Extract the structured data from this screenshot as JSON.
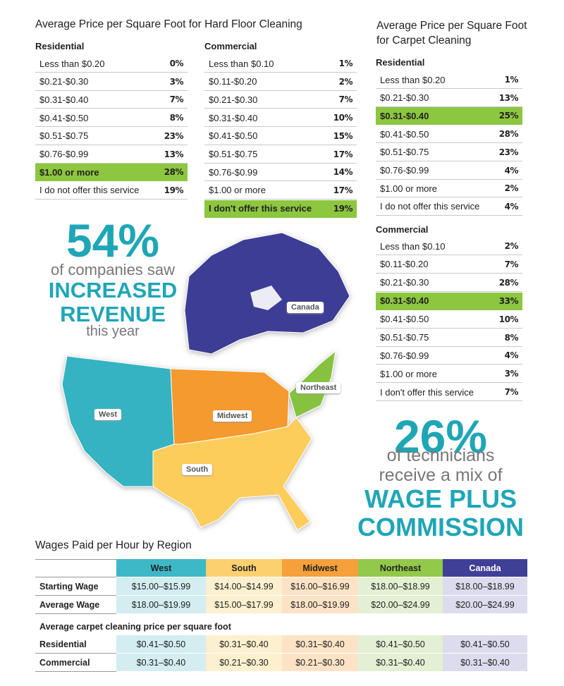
{
  "hard_floor": {
    "title": "Average Price per Square Foot for Hard Floor Cleaning",
    "residential": {
      "heading": "Residential",
      "rows": [
        {
          "label": "Less than $0.20",
          "value": "0%"
        },
        {
          "label": "$0.21-$0.30",
          "value": "3%"
        },
        {
          "label": "$0.31-$0.40",
          "value": "7%"
        },
        {
          "label": "$0.41-$0.50",
          "value": "8%"
        },
        {
          "label": "$0.51-$0.75",
          "value": "23%"
        },
        {
          "label": "$0.76-$0.99",
          "value": "13%"
        },
        {
          "label": "$1.00 or more",
          "value": "28%",
          "highlight": true
        },
        {
          "label": "I do not offer this service",
          "value": "19%"
        }
      ]
    },
    "commercial": {
      "heading": "Commercial",
      "rows": [
        {
          "label": "Less than $0.10",
          "value": "1%"
        },
        {
          "label": "$0.11-$0.20",
          "value": "2%"
        },
        {
          "label": "$0.21-$0.30",
          "value": "7%"
        },
        {
          "label": "$0.31-$0.40",
          "value": "10%"
        },
        {
          "label": "$0.41-$0.50",
          "value": "15%"
        },
        {
          "label": "$0.51-$0.75",
          "value": "17%"
        },
        {
          "label": "$0.76-$0.99",
          "value": "14%"
        },
        {
          "label": "$1.00 or more",
          "value": "17%"
        },
        {
          "label": "I don't offer this service",
          "value": "19%",
          "highlight": true
        }
      ]
    }
  },
  "carpet": {
    "title": "Average Price per Square Foot for Carpet Cleaning",
    "residential": {
      "heading": "Residential",
      "rows": [
        {
          "label": "Less than $0.20",
          "value": "1%"
        },
        {
          "label": "$0.21-$0.30",
          "value": "13%"
        },
        {
          "label": "$0.31-$0.40",
          "value": "25%",
          "highlight": true
        },
        {
          "label": "$0.41-$0.50",
          "value": "28%"
        },
        {
          "label": "$0.51-$0.75",
          "value": "23%"
        },
        {
          "label": "$0.76-$0.99",
          "value": "4%"
        },
        {
          "label": "$1.00 or more",
          "value": "2%"
        },
        {
          "label": "I do not offer this service",
          "value": "4%"
        }
      ]
    },
    "commercial": {
      "heading": "Commercial",
      "rows": [
        {
          "label": "Less than $0.10",
          "value": "2%"
        },
        {
          "label": "$0.11-$0.20",
          "value": "7%"
        },
        {
          "label": "$0.21-$0.30",
          "value": "28%"
        },
        {
          "label": "$0.31-$0.40",
          "value": "33%",
          "highlight": true
        },
        {
          "label": "$0.41-$0.50",
          "value": "10%"
        },
        {
          "label": "$0.51-$0.75",
          "value": "8%"
        },
        {
          "label": "$0.76-$0.99",
          "value": "4%"
        },
        {
          "label": "$1.00 or more",
          "value": "3%"
        },
        {
          "label": "I don't offer this service",
          "value": "7%"
        }
      ]
    }
  },
  "stat_revenue": {
    "value": "54%",
    "line1": "of companies saw",
    "line2": "INCREASED",
    "line3": "REVENUE",
    "line4": "this year"
  },
  "stat_wage": {
    "value": "26%",
    "line1": "of technicians",
    "line2": "receive a mix of",
    "line3": "WAGE PLUS",
    "line4": "COMMISSION"
  },
  "map": {
    "labels": [
      "Canada",
      "West",
      "Midwest",
      "Northeast",
      "South"
    ]
  },
  "wages": {
    "title": "Wages Paid per Hour by Region",
    "columns": [
      {
        "name": "West",
        "color": "#3db8c6",
        "light": "#d3edf1"
      },
      {
        "name": "South",
        "color": "#fdd06f",
        "light": "#fdf0cf"
      },
      {
        "name": "Midwest",
        "color": "#f6a03a",
        "light": "#fde3c6"
      },
      {
        "name": "Northeast",
        "color": "#92c94a",
        "light": "#e3f0d3"
      },
      {
        "name": "Canada",
        "color": "#3f3f97",
        "light": "#dddcee"
      }
    ],
    "rows": [
      {
        "label": "Starting Wage",
        "cells": [
          "$15.00–$15.99",
          "$14.00–$14.99",
          "$16.00–$16.99",
          "$18.00–$18.99",
          "$18.00–$18.99"
        ]
      },
      {
        "label": "Average Wage",
        "cells": [
          "$18.00–$19.99",
          "$15.00–$17.99",
          "$18.00–$19.99",
          "$20.00–$24.99",
          "$20.00–$24.99"
        ]
      }
    ],
    "subheading": "Average carpet cleaning price per square foot",
    "price_rows": [
      {
        "label": "Residential",
        "cells": [
          "$0.41–$0.50",
          "$0.31–$0.40",
          "$0.31–$0.40",
          "$0.41–$0.50",
          "$0.41–$0.50"
        ]
      },
      {
        "label": "Commercial",
        "cells": [
          "$0.31–$0.40",
          "$0.21–$0.30",
          "$0.21–$0.30",
          "$0.31–$0.40",
          "$0.31–$0.40"
        ]
      }
    ]
  }
}
